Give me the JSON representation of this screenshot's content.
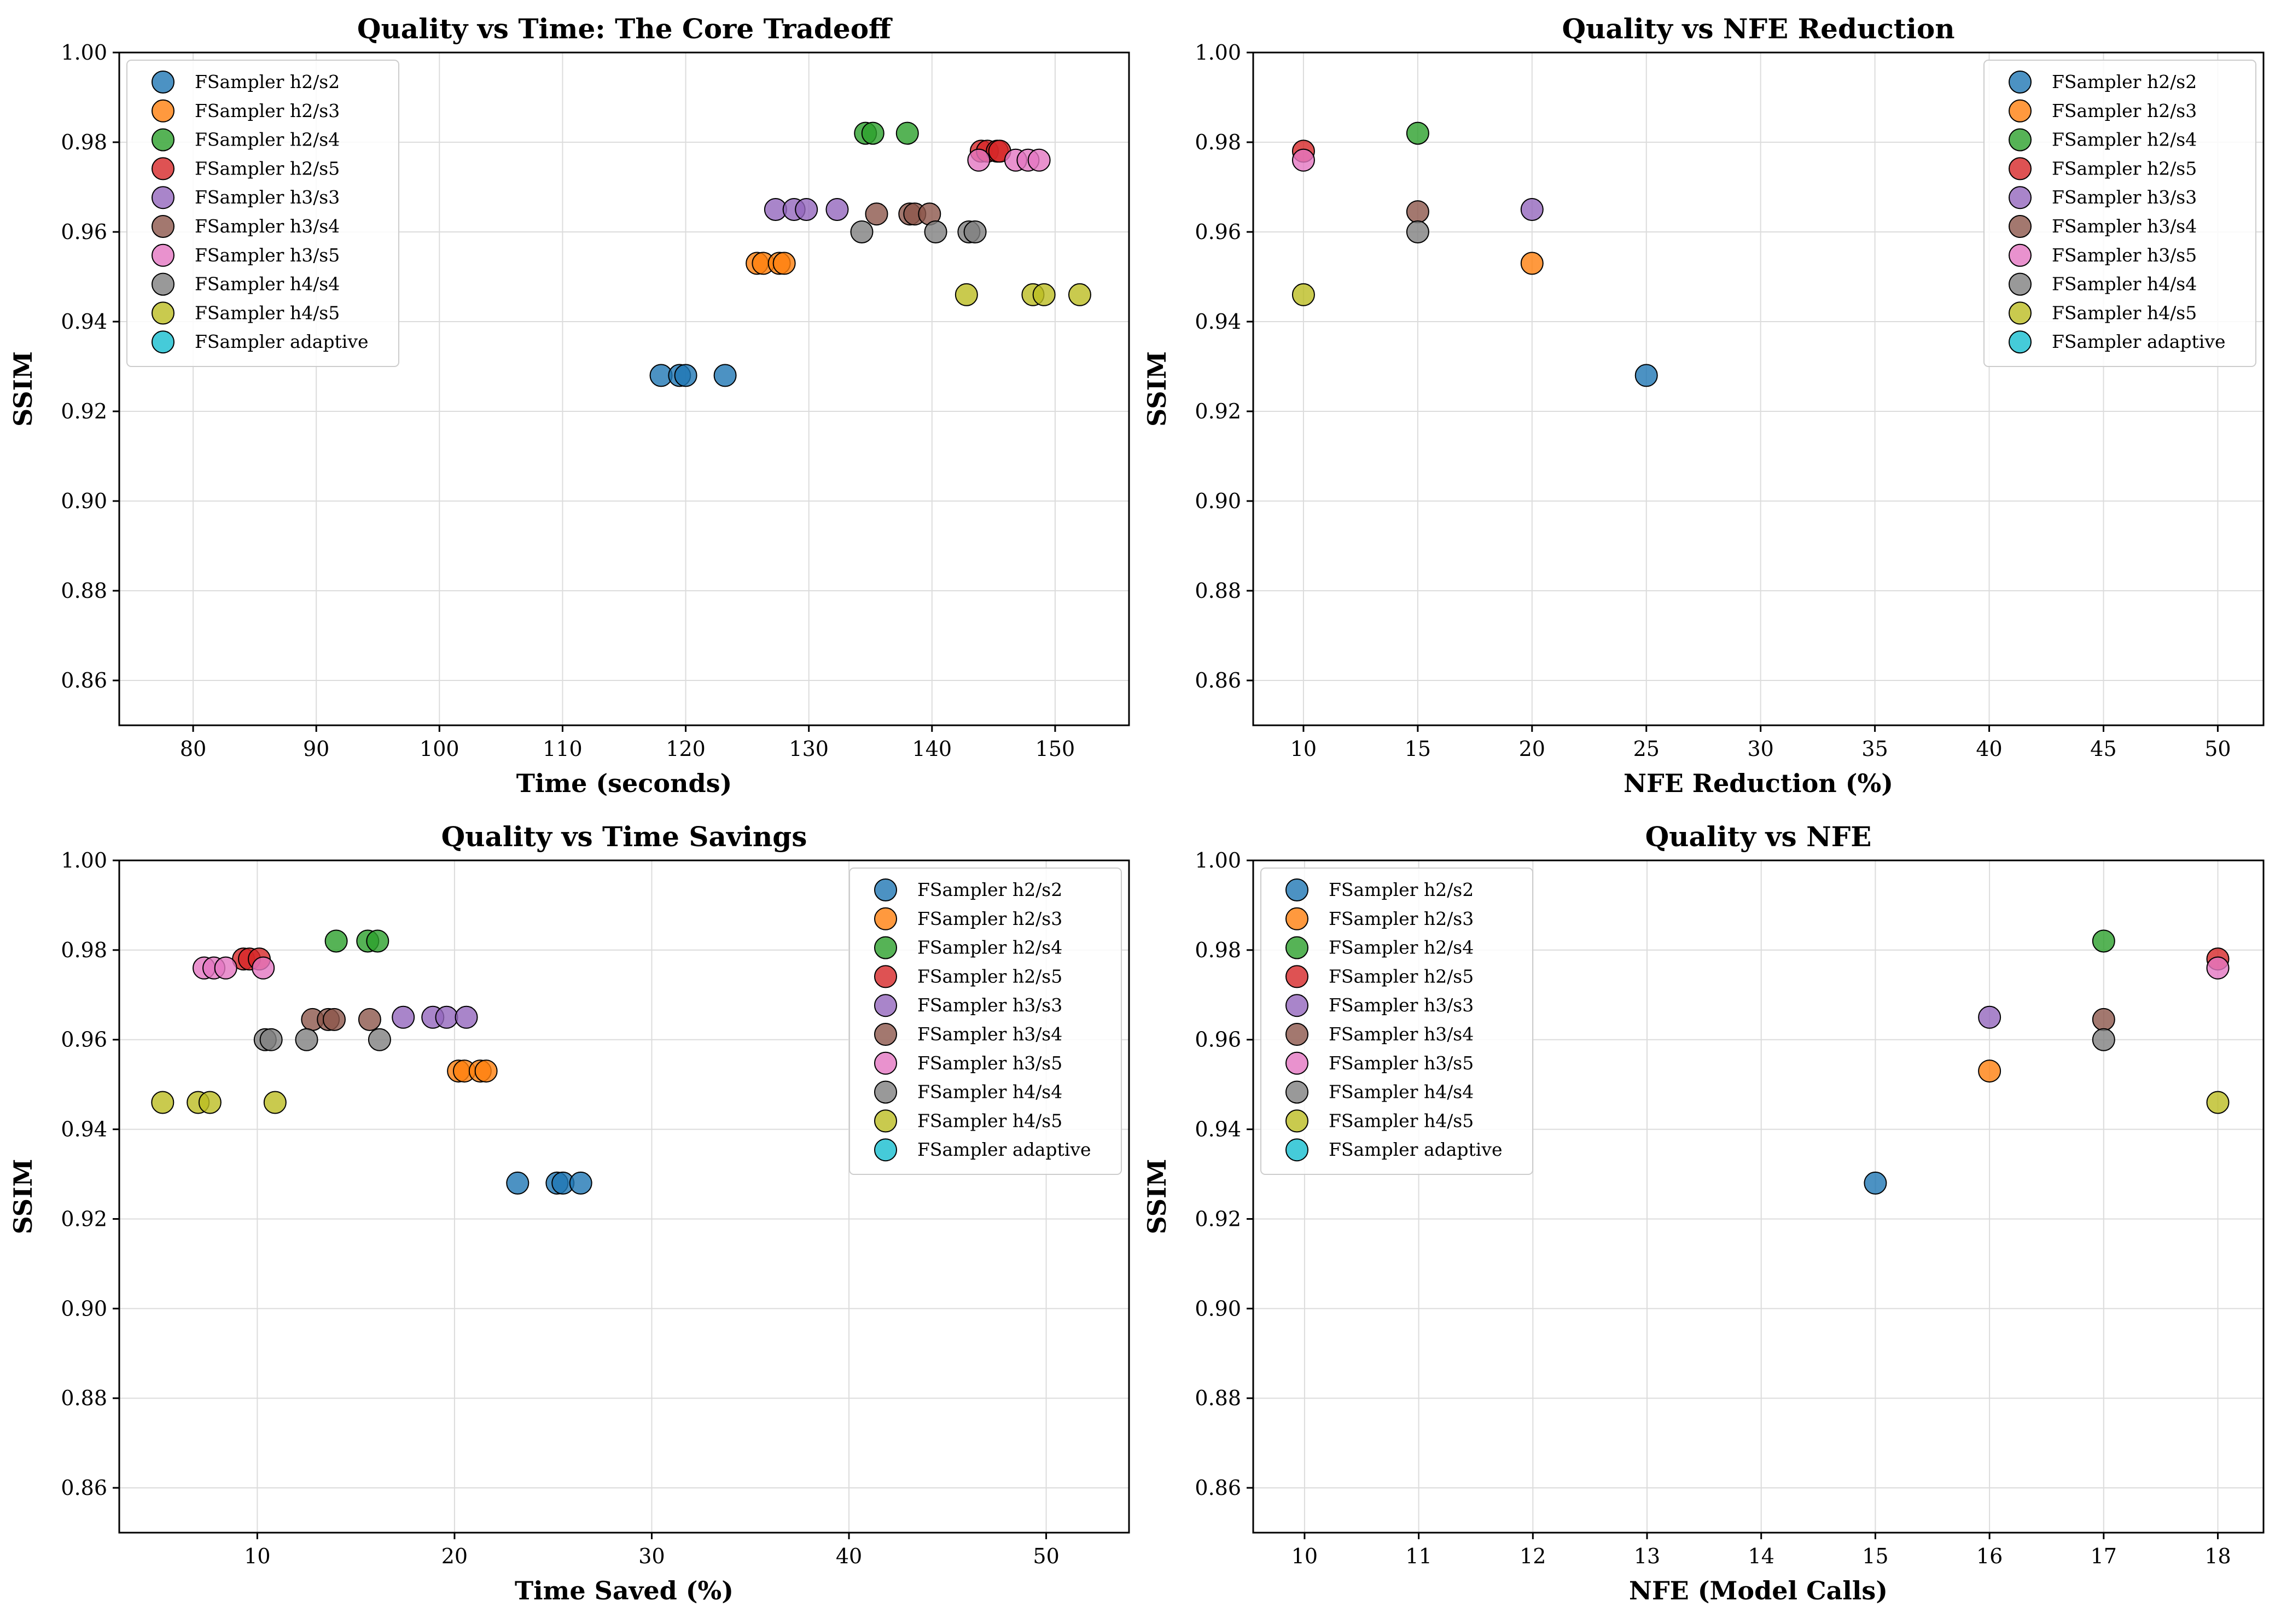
{
  "series_names": [
    "FSampler h2/s2",
    "FSampler h2/s3",
    "FSampler h2/s4",
    "FSampler h2/s5",
    "FSampler h3/s3",
    "FSampler h3/s4",
    "FSampler h3/s5",
    "FSampler h4/s4",
    "FSampler h4/s5",
    "FSampler adaptive"
  ],
  "colors": [
    "#1f77b4",
    "#ff7f0e",
    "#2ca02c",
    "#d62728",
    "#9467bd",
    "#8c564b",
    "#e377c2",
    "#7f7f7f",
    "#bcbd22",
    "#17becf"
  ],
  "chart_data": [
    {
      "type": "scatter",
      "title": "Quality vs Time: The Core Tradeoff",
      "xlabel": "Time (seconds)",
      "ylabel": "SSIM",
      "xlim": [
        74,
        156
      ],
      "ylim": [
        0.85,
        1.0
      ],
      "xticks": [
        "80",
        "90",
        "100",
        "110",
        "120",
        "130",
        "140",
        "150"
      ],
      "yticks": [
        "0.86",
        "0.88",
        "0.90",
        "0.92",
        "0.94",
        "0.96",
        "0.98",
        "1.00"
      ],
      "grid": true,
      "legend": "upper-left",
      "series": [
        {
          "name": "FSampler h2/s2",
          "points": [
            [
              118.0,
              0.928
            ],
            [
              119.5,
              0.928
            ],
            [
              120.0,
              0.928
            ],
            [
              123.2,
              0.928
            ]
          ]
        },
        {
          "name": "FSampler h2/s3",
          "points": [
            [
              125.8,
              0.953
            ],
            [
              126.3,
              0.953
            ],
            [
              127.6,
              0.953
            ],
            [
              128.0,
              0.953
            ]
          ]
        },
        {
          "name": "FSampler h2/s4",
          "points": [
            [
              134.6,
              0.982
            ],
            [
              135.2,
              0.982
            ],
            [
              138.0,
              0.982
            ]
          ]
        },
        {
          "name": "FSampler h2/s5",
          "points": [
            [
              144.0,
              0.978
            ],
            [
              144.5,
              0.978
            ],
            [
              145.3,
              0.978
            ],
            [
              145.5,
              0.978
            ]
          ]
        },
        {
          "name": "FSampler h3/s3",
          "points": [
            [
              127.3,
              0.965
            ],
            [
              128.8,
              0.965
            ],
            [
              129.8,
              0.965
            ],
            [
              132.3,
              0.965
            ]
          ]
        },
        {
          "name": "FSampler h3/s4",
          "points": [
            [
              135.5,
              0.964
            ],
            [
              138.2,
              0.964
            ],
            [
              138.6,
              0.964
            ],
            [
              139.8,
              0.964
            ]
          ]
        },
        {
          "name": "FSampler h3/s5",
          "points": [
            [
              143.8,
              0.976
            ],
            [
              146.8,
              0.976
            ],
            [
              147.8,
              0.976
            ],
            [
              148.7,
              0.976
            ]
          ]
        },
        {
          "name": "FSampler h4/s4",
          "points": [
            [
              134.3,
              0.96
            ],
            [
              140.3,
              0.96
            ],
            [
              143.0,
              0.96
            ],
            [
              143.5,
              0.96
            ]
          ]
        },
        {
          "name": "FSampler h4/s5",
          "points": [
            [
              142.8,
              0.946
            ],
            [
              148.2,
              0.946
            ],
            [
              149.1,
              0.946
            ],
            [
              152.0,
              0.946
            ]
          ]
        },
        {
          "name": "FSampler adaptive",
          "points": []
        }
      ]
    },
    {
      "type": "scatter",
      "title": "Quality vs NFE Reduction",
      "xlabel": "NFE Reduction (%)",
      "ylabel": "SSIM",
      "xlim": [
        7.8,
        52
      ],
      "ylim": [
        0.85,
        1.0
      ],
      "xticks": [
        "10",
        "15",
        "20",
        "25",
        "30",
        "35",
        "40",
        "45",
        "50"
      ],
      "yticks": [
        "0.86",
        "0.88",
        "0.90",
        "0.92",
        "0.94",
        "0.96",
        "0.98",
        "1.00"
      ],
      "grid": true,
      "legend": "upper-right",
      "series": [
        {
          "name": "FSampler h2/s2",
          "points": [
            [
              25,
              0.928
            ]
          ]
        },
        {
          "name": "FSampler h2/s3",
          "points": [
            [
              20,
              0.953
            ]
          ]
        },
        {
          "name": "FSampler h2/s4",
          "points": [
            [
              15,
              0.982
            ]
          ]
        },
        {
          "name": "FSampler h2/s5",
          "points": [
            [
              10,
              0.978
            ]
          ]
        },
        {
          "name": "FSampler h3/s3",
          "points": [
            [
              20,
              0.965
            ]
          ]
        },
        {
          "name": "FSampler h3/s4",
          "points": [
            [
              15,
              0.9645
            ]
          ]
        },
        {
          "name": "FSampler h3/s5",
          "points": [
            [
              10,
              0.976
            ]
          ]
        },
        {
          "name": "FSampler h4/s4",
          "points": [
            [
              15,
              0.96
            ]
          ]
        },
        {
          "name": "FSampler h4/s5",
          "points": [
            [
              10,
              0.946
            ]
          ]
        },
        {
          "name": "FSampler adaptive",
          "points": []
        }
      ]
    },
    {
      "type": "scatter",
      "title": "Quality vs Time Savings",
      "xlabel": "Time Saved (%)",
      "ylabel": "SSIM",
      "xlim": [
        3,
        54.2
      ],
      "ylim": [
        0.85,
        1.0
      ],
      "xticks": [
        "10",
        "20",
        "30",
        "40",
        "50"
      ],
      "yticks": [
        "0.86",
        "0.88",
        "0.90",
        "0.92",
        "0.94",
        "0.96",
        "0.98",
        "1.00"
      ],
      "grid": true,
      "legend": "upper-right",
      "series": [
        {
          "name": "FSampler h2/s2",
          "points": [
            [
              23.2,
              0.928
            ],
            [
              25.2,
              0.928
            ],
            [
              25.5,
              0.928
            ],
            [
              26.4,
              0.928
            ]
          ]
        },
        {
          "name": "FSampler h2/s3",
          "points": [
            [
              20.2,
              0.953
            ],
            [
              20.5,
              0.953
            ],
            [
              21.3,
              0.953
            ],
            [
              21.6,
              0.953
            ]
          ]
        },
        {
          "name": "FSampler h2/s4",
          "points": [
            [
              14.0,
              0.982
            ],
            [
              15.6,
              0.982
            ],
            [
              16.1,
              0.982
            ]
          ]
        },
        {
          "name": "FSampler h2/s5",
          "points": [
            [
              9.3,
              0.978
            ],
            [
              9.6,
              0.978
            ],
            [
              10.1,
              0.978
            ]
          ]
        },
        {
          "name": "FSampler h3/s3",
          "points": [
            [
              17.4,
              0.965
            ],
            [
              18.9,
              0.965
            ],
            [
              19.6,
              0.965
            ],
            [
              20.6,
              0.965
            ]
          ]
        },
        {
          "name": "FSampler h3/s4",
          "points": [
            [
              12.8,
              0.9645
            ],
            [
              13.6,
              0.9645
            ],
            [
              13.9,
              0.9645
            ],
            [
              15.7,
              0.9645
            ]
          ]
        },
        {
          "name": "FSampler h3/s5",
          "points": [
            [
              7.3,
              0.976
            ],
            [
              7.8,
              0.976
            ],
            [
              8.4,
              0.976
            ],
            [
              10.3,
              0.976
            ]
          ]
        },
        {
          "name": "FSampler h4/s4",
          "points": [
            [
              10.4,
              0.96
            ],
            [
              10.7,
              0.96
            ],
            [
              12.5,
              0.96
            ],
            [
              16.2,
              0.96
            ]
          ]
        },
        {
          "name": "FSampler h4/s5",
          "points": [
            [
              5.2,
              0.946
            ],
            [
              7.0,
              0.946
            ],
            [
              7.6,
              0.946
            ],
            [
              10.9,
              0.946
            ]
          ]
        },
        {
          "name": "FSampler adaptive",
          "points": []
        }
      ]
    },
    {
      "type": "scatter",
      "title": "Quality vs NFE",
      "xlabel": "NFE (Model Calls)",
      "ylabel": "SSIM",
      "xlim": [
        9.55,
        18.4
      ],
      "ylim": [
        0.85,
        1.0
      ],
      "xticks": [
        "10",
        "11",
        "12",
        "13",
        "14",
        "15",
        "16",
        "17",
        "18"
      ],
      "yticks": [
        "0.86",
        "0.88",
        "0.90",
        "0.92",
        "0.94",
        "0.96",
        "0.98",
        "1.00"
      ],
      "grid": true,
      "legend": "upper-left",
      "series": [
        {
          "name": "FSampler h2/s2",
          "points": [
            [
              15,
              0.928
            ]
          ]
        },
        {
          "name": "FSampler h2/s3",
          "points": [
            [
              16,
              0.953
            ]
          ]
        },
        {
          "name": "FSampler h2/s4",
          "points": [
            [
              17,
              0.982
            ]
          ]
        },
        {
          "name": "FSampler h2/s5",
          "points": [
            [
              18,
              0.978
            ]
          ]
        },
        {
          "name": "FSampler h3/s3",
          "points": [
            [
              16,
              0.965
            ]
          ]
        },
        {
          "name": "FSampler h3/s4",
          "points": [
            [
              17,
              0.9645
            ]
          ]
        },
        {
          "name": "FSampler h3/s5",
          "points": [
            [
              18,
              0.976
            ]
          ]
        },
        {
          "name": "FSampler h4/s4",
          "points": [
            [
              17,
              0.96
            ]
          ]
        },
        {
          "name": "FSampler h4/s5",
          "points": [
            [
              18,
              0.946
            ]
          ]
        },
        {
          "name": "FSampler adaptive",
          "points": []
        }
      ]
    }
  ]
}
